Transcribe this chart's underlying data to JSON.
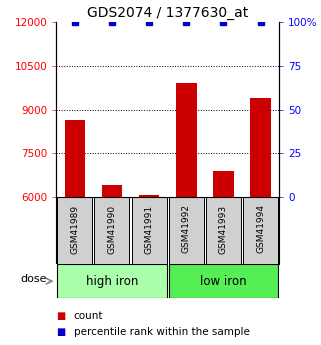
{
  "title": "GDS2074 / 1377630_at",
  "samples": [
    "GSM41989",
    "GSM41990",
    "GSM41991",
    "GSM41992",
    "GSM41993",
    "GSM41994"
  ],
  "counts": [
    8650,
    6400,
    6050,
    9900,
    6900,
    9400
  ],
  "groups": [
    {
      "label": "high iron",
      "indices": [
        0,
        1,
        2
      ],
      "color": "#aaffaa"
    },
    {
      "label": "low iron",
      "indices": [
        3,
        4,
        5
      ],
      "color": "#55ee55"
    }
  ],
  "ylim_left": [
    6000,
    12000
  ],
  "ylim_right": [
    0,
    100
  ],
  "yticks_left": [
    6000,
    7500,
    9000,
    10500,
    12000
  ],
  "yticks_right": [
    0,
    25,
    50,
    75,
    100
  ],
  "ytick_labels_right": [
    "0",
    "25",
    "50",
    "75",
    "100%"
  ],
  "bar_color": "#cc0000",
  "marker_color": "#0000cc",
  "bar_bottom": 6000,
  "dotted_lines": [
    7500,
    9000,
    10500
  ],
  "dose_label": "dose",
  "legend_count_label": "count",
  "legend_percentile_label": "percentile rank within the sample",
  "title_fontsize": 10,
  "tick_fontsize": 7.5,
  "label_fontsize": 8,
  "sample_fontsize": 6.5,
  "group_label_fontsize": 8.5,
  "legend_fontsize": 7.5
}
